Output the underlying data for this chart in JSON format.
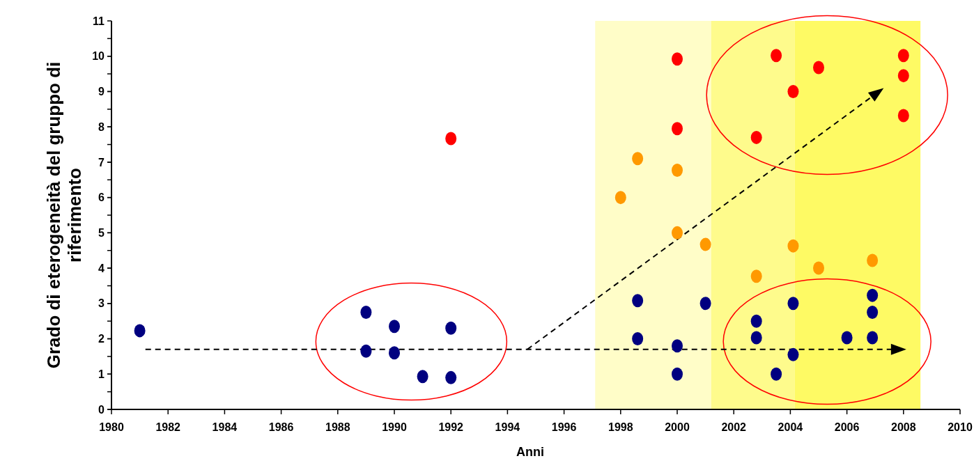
{
  "chart_data": {
    "type": "scatter",
    "xlabel": "Anni",
    "ylabel": "Grado di eterogeneità del gruppo di riferimento",
    "xlim": [
      1980,
      2010
    ],
    "xticks": [
      1980,
      1982,
      1984,
      1986,
      1988,
      1990,
      1992,
      1994,
      1996,
      1998,
      2000,
      2002,
      2004,
      2006,
      2008,
      2010
    ],
    "ylim": [
      0,
      11
    ],
    "yticks": [
      0,
      1,
      2,
      3,
      4,
      5,
      6,
      7,
      8,
      9,
      10,
      11
    ],
    "grid": false,
    "marker": "circle",
    "bands": [
      {
        "axis": "x",
        "from": 1997.1,
        "to": 2001.2,
        "color": "#fffdc8"
      },
      {
        "axis": "x",
        "from": 2001.2,
        "to": 2004.15,
        "color": "#fefb8c"
      },
      {
        "axis": "x",
        "from": 2004.15,
        "to": 2008.6,
        "color": "#fefa64"
      }
    ],
    "series": [
      {
        "color": "#000080",
        "x": [
          1981,
          1989,
          1989,
          1990,
          1990,
          1991,
          1992,
          1992,
          1998.6,
          1998.6,
          2000,
          2000,
          2001,
          2002.8,
          2002.8,
          2003.5,
          2004.1,
          2004.1,
          2006,
          2006.9,
          2006.9,
          2006.9
        ],
        "values": [
          2.23,
          2.75,
          1.65,
          2.35,
          1.6,
          0.93,
          2.3,
          0.9,
          3.08,
          2.0,
          1.8,
          1.0,
          3.0,
          2.5,
          2.03,
          1.0,
          3.0,
          1.55,
          2.03,
          3.23,
          2.75,
          2.03
        ]
      },
      {
        "color": "#ff9900",
        "x": [
          1998,
          1998.6,
          2000,
          2000,
          2001,
          2002.8,
          2004.1,
          2005,
          2006.9
        ],
        "values": [
          6.0,
          7.1,
          6.77,
          5.0,
          4.67,
          3.77,
          4.63,
          4.0,
          4.22
        ]
      },
      {
        "color": "#ff0000",
        "x": [
          1992,
          2000,
          2000,
          2002.8,
          2003.5,
          2004.1,
          2005,
          2008,
          2008,
          2008
        ],
        "values": [
          7.67,
          9.92,
          7.95,
          7.7,
          10.02,
          9.0,
          9.68,
          10.02,
          9.45,
          8.32
        ]
      }
    ]
  }
}
